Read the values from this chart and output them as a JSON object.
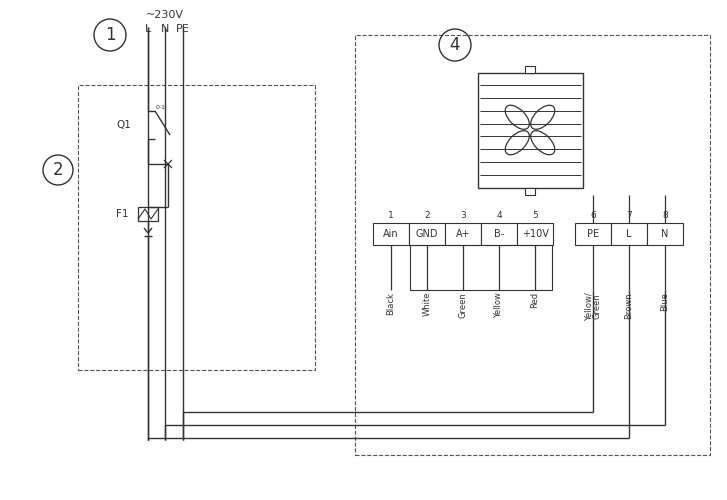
{
  "bg_color": "#ffffff",
  "line_color": "#333333",
  "dashed_color": "#555555",
  "voltage_label": "~230V",
  "terminal_labels_group1": [
    "Ain",
    "GND",
    "A+",
    "B-",
    "+10V"
  ],
  "terminal_nums_group1": [
    "1",
    "2",
    "3",
    "4",
    "5"
  ],
  "terminal_labels_group2": [
    "PE",
    "L",
    "N"
  ],
  "terminal_nums_group2": [
    "6",
    "7",
    "8"
  ],
  "wire_labels": [
    "Black",
    "White",
    "Green",
    "Yellow",
    "Red",
    "Yellow/\nGreen",
    "Brown",
    "Blue"
  ]
}
